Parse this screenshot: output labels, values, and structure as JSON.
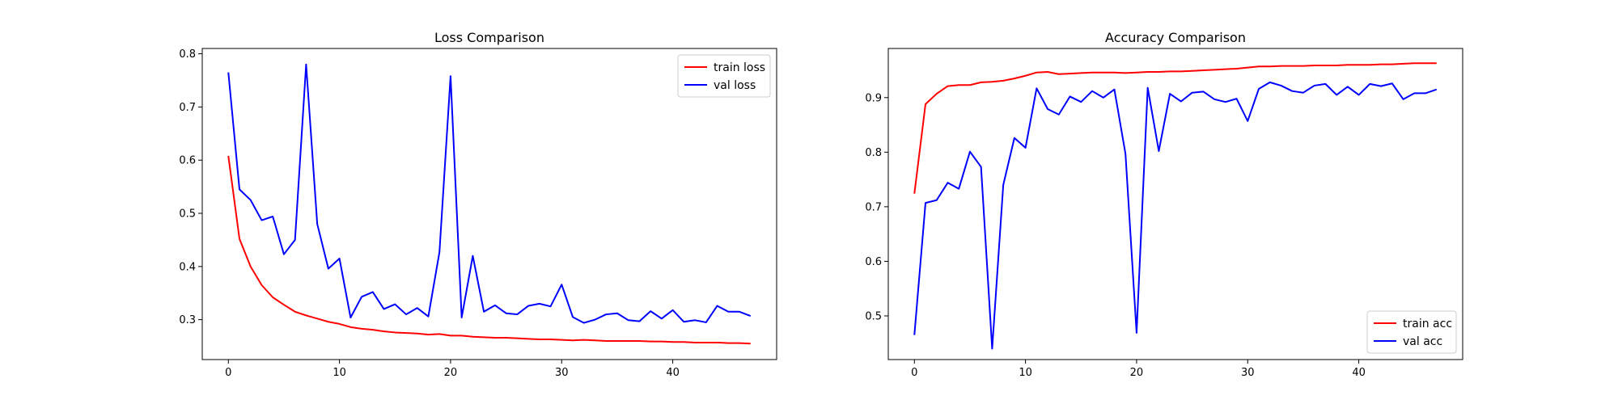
{
  "chart_data": [
    {
      "type": "line",
      "title": "Loss Comparison",
      "xlabel": "",
      "ylabel": "",
      "xlim": [
        -2.35,
        49.35
      ],
      "ylim": [
        0.225,
        0.81
      ],
      "xticks": [
        0,
        10,
        20,
        30,
        40
      ],
      "yticks": [
        0.3,
        0.4,
        0.5,
        0.6,
        0.7,
        0.8
      ],
      "ytick_labels": [
        "0.3",
        "0.4",
        "0.5",
        "0.6",
        "0.7",
        "0.8"
      ],
      "legend": "upper-right",
      "grid": false,
      "x": [
        0,
        1,
        2,
        3,
        4,
        5,
        6,
        7,
        8,
        9,
        10,
        11,
        12,
        13,
        14,
        15,
        16,
        17,
        18,
        19,
        20,
        21,
        22,
        23,
        24,
        25,
        26,
        27,
        28,
        29,
        30,
        31,
        32,
        33,
        34,
        35,
        36,
        37,
        38,
        39,
        40,
        41,
        42,
        43,
        44,
        45,
        46,
        47
      ],
      "series": [
        {
          "name": "train loss",
          "color": "#ff0000",
          "values": [
            0.608,
            0.452,
            0.4,
            0.365,
            0.342,
            0.328,
            0.315,
            0.308,
            0.302,
            0.296,
            0.292,
            0.286,
            0.283,
            0.281,
            0.278,
            0.276,
            0.275,
            0.274,
            0.272,
            0.273,
            0.27,
            0.27,
            0.268,
            0.267,
            0.266,
            0.266,
            0.265,
            0.264,
            0.263,
            0.263,
            0.262,
            0.261,
            0.262,
            0.261,
            0.26,
            0.26,
            0.26,
            0.26,
            0.259,
            0.259,
            0.258,
            0.258,
            0.257,
            0.257,
            0.257,
            0.256,
            0.256,
            0.255
          ]
        },
        {
          "name": "val loss",
          "color": "#0000ff",
          "values": [
            0.765,
            0.545,
            0.525,
            0.487,
            0.494,
            0.423,
            0.45,
            0.78,
            0.48,
            0.396,
            0.415,
            0.304,
            0.343,
            0.352,
            0.32,
            0.329,
            0.31,
            0.322,
            0.306,
            0.427,
            0.758,
            0.304,
            0.42,
            0.315,
            0.327,
            0.312,
            0.31,
            0.326,
            0.33,
            0.325,
            0.366,
            0.305,
            0.294,
            0.3,
            0.31,
            0.312,
            0.299,
            0.297,
            0.316,
            0.302,
            0.318,
            0.296,
            0.299,
            0.295,
            0.326,
            0.315,
            0.315,
            0.307
          ]
        }
      ]
    },
    {
      "type": "line",
      "title": "Accuracy Comparison",
      "xlabel": "",
      "ylabel": "",
      "xlim": [
        -2.35,
        49.35
      ],
      "ylim": [
        0.42,
        0.99
      ],
      "xticks": [
        0,
        10,
        20,
        30,
        40
      ],
      "yticks": [
        0.5,
        0.6,
        0.7,
        0.8,
        0.9
      ],
      "ytick_labels": [
        "0.5",
        "0.6",
        "0.7",
        "0.8",
        "0.9"
      ],
      "legend": "lower-right",
      "grid": false,
      "x": [
        0,
        1,
        2,
        3,
        4,
        5,
        6,
        7,
        8,
        9,
        10,
        11,
        12,
        13,
        14,
        15,
        16,
        17,
        18,
        19,
        20,
        21,
        22,
        23,
        24,
        25,
        26,
        27,
        28,
        29,
        30,
        31,
        32,
        33,
        34,
        35,
        36,
        37,
        38,
        39,
        40,
        41,
        42,
        43,
        44,
        45,
        46,
        47
      ],
      "series": [
        {
          "name": "train acc",
          "color": "#ff0000",
          "values": [
            0.724,
            0.888,
            0.907,
            0.921,
            0.923,
            0.923,
            0.928,
            0.929,
            0.931,
            0.935,
            0.94,
            0.946,
            0.947,
            0.943,
            0.944,
            0.945,
            0.946,
            0.946,
            0.946,
            0.945,
            0.946,
            0.947,
            0.947,
            0.948,
            0.948,
            0.949,
            0.95,
            0.951,
            0.952,
            0.953,
            0.955,
            0.957,
            0.957,
            0.958,
            0.958,
            0.958,
            0.959,
            0.959,
            0.959,
            0.96,
            0.96,
            0.96,
            0.961,
            0.961,
            0.962,
            0.963,
            0.963,
            0.963
          ]
        },
        {
          "name": "val acc",
          "color": "#0000ff",
          "values": [
            0.465,
            0.707,
            0.712,
            0.744,
            0.733,
            0.801,
            0.773,
            0.44,
            0.74,
            0.826,
            0.808,
            0.917,
            0.879,
            0.869,
            0.902,
            0.892,
            0.912,
            0.9,
            0.915,
            0.797,
            0.469,
            0.918,
            0.802,
            0.907,
            0.893,
            0.909,
            0.911,
            0.897,
            0.892,
            0.898,
            0.857,
            0.916,
            0.928,
            0.922,
            0.912,
            0.909,
            0.922,
            0.925,
            0.905,
            0.92,
            0.905,
            0.925,
            0.921,
            0.926,
            0.897,
            0.908,
            0.908,
            0.915
          ]
        }
      ]
    }
  ]
}
